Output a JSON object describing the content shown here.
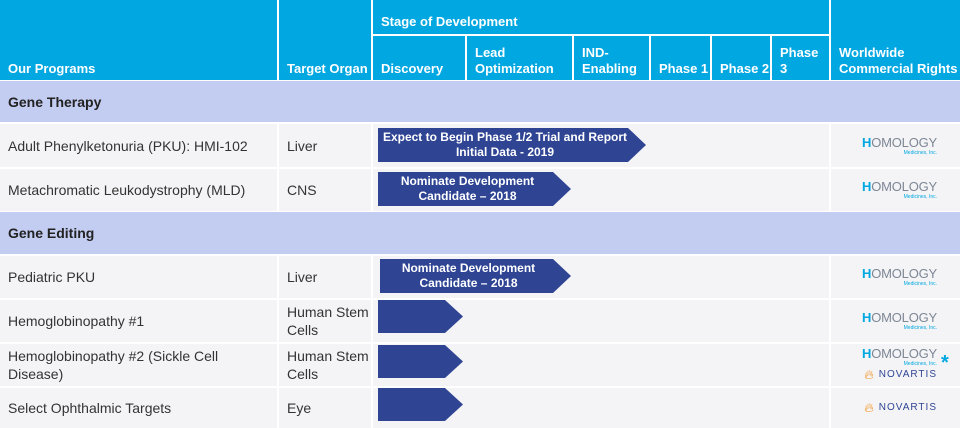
{
  "header": {
    "programs": "Our Programs",
    "target_organ": "Target Organ",
    "stage": "Stage of Development",
    "rights": "Worldwide Commercial Rights",
    "stages": [
      {
        "label": "Discovery"
      },
      {
        "label": "Lead Optimization"
      },
      {
        "label": "IND-Enabling"
      },
      {
        "label": "Phase 1"
      },
      {
        "label": "Phase 2"
      },
      {
        "label": "Phase 3"
      }
    ]
  },
  "sections": [
    {
      "title": "Gene Therapy"
    },
    {
      "title": "Gene Editing"
    }
  ],
  "rows": [
    {
      "program": "Adult Phenylketonuria (PKU): HMI-102",
      "organ": "Liver",
      "milestone": "Expect to Begin Phase 1/2 Trial and Report Initial Data - 2019",
      "progress_stage": 3.0
    },
    {
      "program": "Metachromatic Leukodystrophy (MLD)",
      "organ": "CNS",
      "milestone": "Nominate Development Candidate – 2018",
      "progress_stage": 2.0
    },
    {
      "program": "Pediatric PKU",
      "organ": "Liver",
      "milestone": "Nominate Development Candidate – 2018",
      "progress_stage": 2.0
    },
    {
      "program": "Hemoglobinopathy #1",
      "organ": "Human Stem Cells",
      "milestone": "",
      "progress_stage": 1.0
    },
    {
      "program": "Hemoglobinopathy #2 (Sickle Cell Disease)",
      "organ": "Human Stem Cells",
      "milestone": "",
      "progress_stage": 1.0
    },
    {
      "program": "Select Ophthalmic Targets",
      "organ": "Eye",
      "milestone": "",
      "progress_stage": 1.0
    }
  ],
  "logos": {
    "homology_main": "OMOLOGY",
    "homology_h": "H",
    "homology_sub": "Medicines, Inc.",
    "novartis": "NOVARTIS",
    "asterisk": "*"
  },
  "colors": {
    "header": "#00a7e1",
    "section": "#c3cdf2",
    "arrow": "#2f4594"
  }
}
